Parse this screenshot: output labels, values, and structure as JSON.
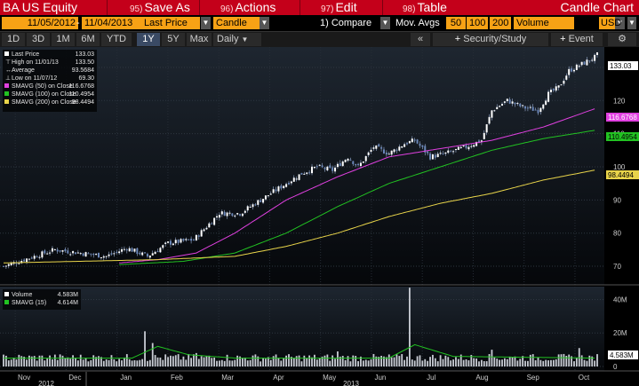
{
  "toolbar": {
    "ticker": "BA US Equity",
    "save_as": {
      "num": "95)",
      "label": "Save As"
    },
    "actions": {
      "num": "96)",
      "label": "Actions"
    },
    "edit": {
      "num": "97)",
      "label": "Edit"
    },
    "table": {
      "num": "98)",
      "label": "Table"
    },
    "title": "Candle Chart"
  },
  "params": {
    "start_date": "11/05/2012",
    "end_date": "11/04/2013",
    "field": "Last Price",
    "chart_type": "Candle",
    "compare": "1) Compare",
    "mov_avgs_label": "Mov. Avgs",
    "ma1": "50",
    "ma2": "100",
    "ma3": "200",
    "lower": "Volume",
    "currency": "USD"
  },
  "periods": [
    "1D",
    "3D",
    "1M",
    "6M",
    "YTD",
    "1Y",
    "5Y",
    "Max"
  ],
  "active_period": "1Y",
  "frequency": "Daily",
  "collapse": "«",
  "security_study": "Security/Study",
  "event": "Event",
  "colors": {
    "bar": "#c4001a",
    "orange": "#f7a215",
    "magenta": "#e040e0",
    "green": "#22c222",
    "yellow": "#e8d44a"
  },
  "chart_data": {
    "type": "candlestick",
    "x_months": [
      "Nov",
      "Dec",
      "Jan",
      "Feb",
      "Mar",
      "Apr",
      "May",
      "Jun",
      "Jul",
      "Aug",
      "Sep",
      "Oct"
    ],
    "x_years": [
      "2012",
      "2013"
    ],
    "y_ticks": [
      70,
      80,
      90,
      100,
      110,
      120,
      130
    ],
    "ylim": [
      66,
      134
    ],
    "legend": [
      {
        "label": "Last Price",
        "value": "133.03"
      },
      {
        "label": "High on 11/01/13",
        "value": "133.50"
      },
      {
        "label": "Average",
        "value": "93.5684"
      },
      {
        "label": "Low on 11/07/12",
        "value": "69.30"
      },
      {
        "label": "SMAVG (50) on Close",
        "value": "116.6768"
      },
      {
        "label": "SMAVG (100) on Close",
        "value": "110.4954"
      },
      {
        "label": "SMAVG (200) on Close",
        "value": "98.4494"
      }
    ],
    "last_price_tag": "133.03",
    "sma50_tag": "116.6768",
    "sma100_tag": "110.4954",
    "sma200_tag": "98.4494",
    "price_points": [
      [
        0,
        70
      ],
      [
        6,
        71.5
      ],
      [
        12,
        73
      ],
      [
        20,
        75
      ],
      [
        30,
        74
      ],
      [
        40,
        73
      ],
      [
        48,
        75.5
      ],
      [
        56,
        73
      ],
      [
        64,
        77
      ],
      [
        74,
        78
      ],
      [
        84,
        86
      ],
      [
        92,
        86
      ],
      [
        100,
        90
      ],
      [
        108,
        94
      ],
      [
        116,
        98
      ],
      [
        122,
        100
      ],
      [
        128,
        99
      ],
      [
        134,
        103
      ],
      [
        138,
        100
      ],
      [
        144,
        106
      ],
      [
        150,
        104
      ],
      [
        156,
        107
      ],
      [
        160,
        108
      ],
      [
        166,
        103
      ],
      [
        172,
        104
      ],
      [
        180,
        106
      ],
      [
        186,
        108
      ],
      [
        190,
        117
      ],
      [
        196,
        120
      ],
      [
        202,
        118
      ],
      [
        208,
        117
      ],
      [
        212,
        122
      ],
      [
        216,
        124
      ],
      [
        220,
        129
      ],
      [
        225,
        131
      ],
      [
        230,
        133.03
      ]
    ],
    "sma50": [
      [
        45,
        71
      ],
      [
        60,
        72
      ],
      [
        75,
        74
      ],
      [
        90,
        80
      ],
      [
        110,
        90
      ],
      [
        130,
        97
      ],
      [
        150,
        103
      ],
      [
        170,
        105.5
      ],
      [
        190,
        108
      ],
      [
        210,
        112
      ],
      [
        230,
        117.5
      ]
    ],
    "sma100": [
      [
        45,
        70.5
      ],
      [
        70,
        71.5
      ],
      [
        90,
        74
      ],
      [
        110,
        80
      ],
      [
        130,
        88
      ],
      [
        150,
        95
      ],
      [
        170,
        100
      ],
      [
        190,
        105
      ],
      [
        210,
        108.5
      ],
      [
        230,
        111
      ]
    ],
    "sma200": [
      [
        0,
        71
      ],
      [
        30,
        71.5
      ],
      [
        60,
        72
      ],
      [
        90,
        73
      ],
      [
        110,
        76
      ],
      [
        130,
        80
      ],
      [
        150,
        85
      ],
      [
        170,
        89
      ],
      [
        190,
        92
      ],
      [
        210,
        96
      ],
      [
        230,
        99
      ]
    ],
    "volume_legend": [
      {
        "label": "Volume",
        "value": "4.583M"
      },
      {
        "label": "SMAVG (15)",
        "value": "4.614M"
      }
    ],
    "volume_ticks": [
      "40M",
      "20M",
      "0"
    ],
    "volume_last_tag": "4.583M",
    "volume_ylim": [
      0,
      45
    ],
    "volume_spikes": [
      [
        55,
        21
      ],
      [
        58,
        14
      ],
      [
        75,
        8
      ],
      [
        130,
        9
      ],
      [
        158,
        47
      ],
      [
        190,
        10
      ],
      [
        224,
        11
      ]
    ],
    "volume_sma_points": [
      [
        0,
        5
      ],
      [
        50,
        5
      ],
      [
        60,
        12
      ],
      [
        72,
        7
      ],
      [
        90,
        5
      ],
      [
        150,
        5
      ],
      [
        160,
        13
      ],
      [
        175,
        6
      ],
      [
        230,
        5
      ]
    ]
  }
}
